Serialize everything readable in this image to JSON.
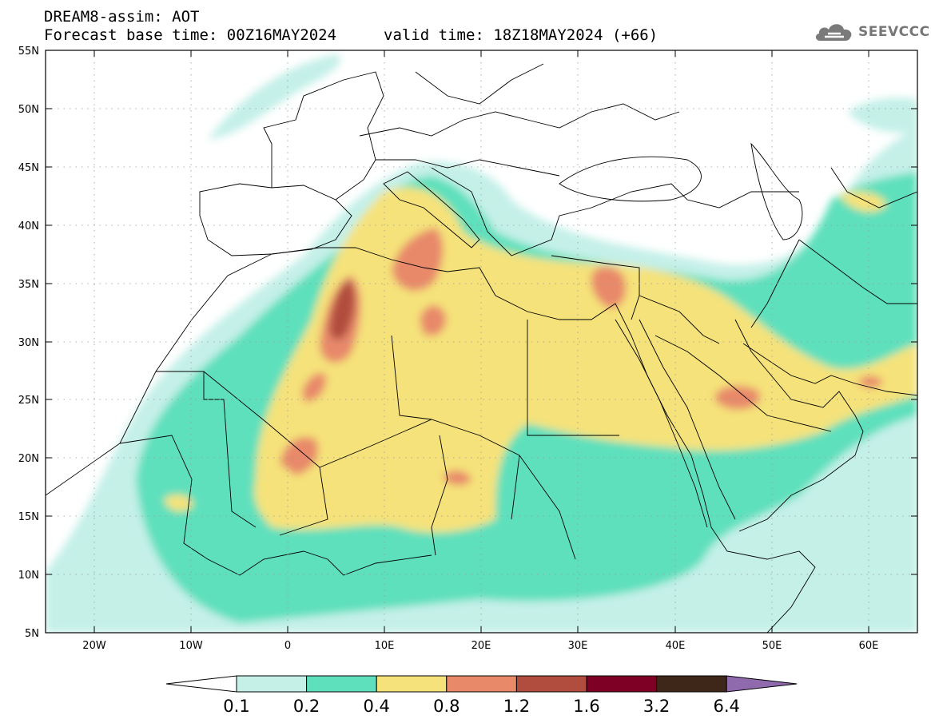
{
  "header": {
    "title": "DREAM8-assim: AOT",
    "base_time": "Forecast base time: 00Z16MAY2024",
    "valid_time": "valid time: 18Z18MAY2024 (+66)",
    "brand": "SEEVCCC"
  },
  "map": {
    "lon_range": [
      -25,
      65
    ],
    "lat_range": [
      5,
      55
    ],
    "lon_ticks": [
      "20W",
      "10W",
      "0",
      "10E",
      "20E",
      "30E",
      "40E",
      "50E",
      "60E"
    ],
    "lat_ticks": [
      "55N",
      "50N",
      "45N",
      "40N",
      "35N",
      "30N",
      "25N",
      "20N",
      "15N",
      "10N",
      "5N"
    ],
    "ocean_color": "#ffffff",
    "border_color": "#000000"
  },
  "colorbar": {
    "labels": [
      "0.1",
      "0.2",
      "0.4",
      "0.8",
      "1.2",
      "1.6",
      "3.2",
      "6.4"
    ],
    "colors": [
      "#c4f0e8",
      "#5ee0bc",
      "#f5e27a",
      "#e8896a",
      "#b14d3e",
      "#7e0024",
      "#3e2718",
      "#8f6bae"
    ]
  }
}
